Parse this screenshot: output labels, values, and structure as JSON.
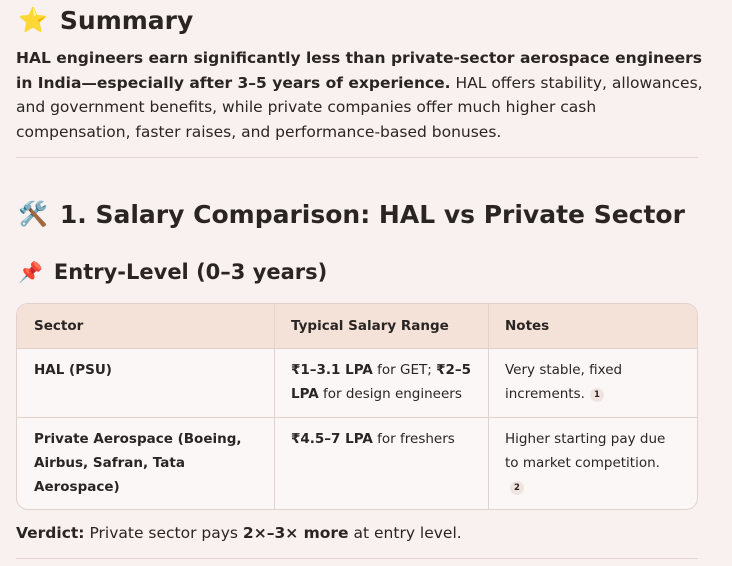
{
  "summary": {
    "icon": "star-icon",
    "title": "Summary",
    "bold_text": "HAL engineers earn significantly less than private-sector aerospace engineers in India—especially after 3–5 years of experience.",
    "rest_text": " HAL offers stability, allowances, and government benefits, while private companies offer much higher cash compensation, faster raises, and performance-based bonuses."
  },
  "section1": {
    "icon": "hammer-wrench-icon",
    "title": "1. Salary Comparison: HAL vs Private Sector"
  },
  "entry_level": {
    "icon": "pushpin-icon",
    "title": "Entry-Level (0–3 years)",
    "table": {
      "headers": [
        "Sector",
        "Typical Salary Range",
        "Notes"
      ],
      "rows": [
        {
          "sector": "HAL (PSU)",
          "salary_parts": [
            {
              "text": "₹1–3.1 LPA",
              "bold": true
            },
            {
              "text": " for GET; ",
              "bold": false
            },
            {
              "text": "₹2–5 LPA",
              "bold": true
            },
            {
              "text": " for design engineers",
              "bold": false
            }
          ],
          "notes": "Very stable, fixed increments.",
          "cite": "1"
        },
        {
          "sector": "Private Aerospace (Boeing, Airbus, Safran, Tata Aerospace)",
          "salary_parts": [
            {
              "text": "₹4.5–7 LPA",
              "bold": true
            },
            {
              "text": " for freshers",
              "bold": false
            }
          ],
          "notes": "Higher starting pay due to market competition.",
          "cite": "2"
        }
      ]
    }
  },
  "verdict": {
    "label": "Verdict:",
    "pre": " Private sector pays ",
    "bold": "2×–3× more",
    "post": " at entry level."
  }
}
